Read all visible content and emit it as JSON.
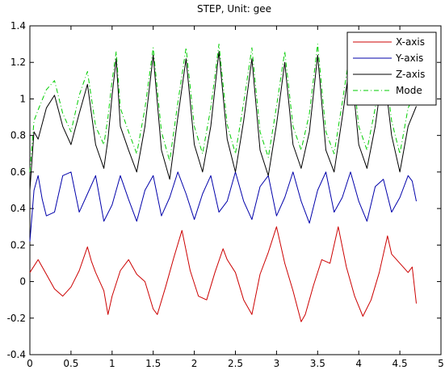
{
  "chart_data": {
    "type": "line",
    "title": "STEP, Unit: gee",
    "xlabel": "",
    "ylabel": "",
    "xlim": [
      0,
      5
    ],
    "ylim": [
      -0.4,
      1.4
    ],
    "xticks": [
      0,
      0.5,
      1,
      1.5,
      2,
      2.5,
      3,
      3.5,
      4,
      4.5,
      5
    ],
    "yticks": [
      -0.4,
      -0.2,
      0,
      0.2,
      0.4,
      0.6,
      0.8,
      1,
      1.2,
      1.4
    ],
    "xtick_labels": [
      "0",
      "0.5",
      "1",
      "1.5",
      "2",
      "2.5",
      "3",
      "3.5",
      "4",
      "4.5",
      "5"
    ],
    "ytick_labels": [
      "-0.4",
      "-0.2",
      "0",
      "0.2",
      "0.4",
      "0.6",
      "0.8",
      "1",
      "1.2",
      "1.4"
    ],
    "grid": false,
    "legend_position": "top-right",
    "series": [
      {
        "name": "X-axis",
        "color": "#cc0000",
        "dash": "solid",
        "points": [
          [
            0.0,
            0.05
          ],
          [
            0.1,
            0.12
          ],
          [
            0.2,
            0.04
          ],
          [
            0.3,
            -0.04
          ],
          [
            0.4,
            -0.08
          ],
          [
            0.5,
            -0.03
          ],
          [
            0.6,
            0.06
          ],
          [
            0.7,
            0.19
          ],
          [
            0.75,
            0.11
          ],
          [
            0.8,
            0.05
          ],
          [
            0.9,
            -0.05
          ],
          [
            0.95,
            -0.18
          ],
          [
            1.0,
            -0.08
          ],
          [
            1.1,
            0.06
          ],
          [
            1.2,
            0.12
          ],
          [
            1.3,
            0.04
          ],
          [
            1.4,
            0.0
          ],
          [
            1.5,
            -0.15
          ],
          [
            1.55,
            -0.18
          ],
          [
            1.65,
            -0.03
          ],
          [
            1.75,
            0.13
          ],
          [
            1.85,
            0.28
          ],
          [
            1.95,
            0.06
          ],
          [
            2.05,
            -0.08
          ],
          [
            2.15,
            -0.1
          ],
          [
            2.25,
            0.05
          ],
          [
            2.35,
            0.18
          ],
          [
            2.4,
            0.12
          ],
          [
            2.5,
            0.05
          ],
          [
            2.6,
            -0.1
          ],
          [
            2.7,
            -0.18
          ],
          [
            2.8,
            0.04
          ],
          [
            2.9,
            0.16
          ],
          [
            3.0,
            0.3
          ],
          [
            3.1,
            0.1
          ],
          [
            3.2,
            -0.05
          ],
          [
            3.3,
            -0.22
          ],
          [
            3.35,
            -0.18
          ],
          [
            3.45,
            -0.02
          ],
          [
            3.55,
            0.12
          ],
          [
            3.65,
            0.1
          ],
          [
            3.75,
            0.3
          ],
          [
            3.85,
            0.08
          ],
          [
            3.95,
            -0.08
          ],
          [
            4.05,
            -0.19
          ],
          [
            4.15,
            -0.1
          ],
          [
            4.25,
            0.05
          ],
          [
            4.35,
            0.25
          ],
          [
            4.4,
            0.15
          ],
          [
            4.5,
            0.1
          ],
          [
            4.6,
            0.05
          ],
          [
            4.65,
            0.08
          ],
          [
            4.7,
            -0.12
          ]
        ]
      },
      {
        "name": "Y-axis",
        "color": "#0000aa",
        "dash": "solid",
        "points": [
          [
            0.0,
            0.22
          ],
          [
            0.05,
            0.5
          ],
          [
            0.1,
            0.58
          ],
          [
            0.15,
            0.45
          ],
          [
            0.2,
            0.36
          ],
          [
            0.3,
            0.38
          ],
          [
            0.4,
            0.58
          ],
          [
            0.5,
            0.6
          ],
          [
            0.6,
            0.38
          ],
          [
            0.7,
            0.48
          ],
          [
            0.8,
            0.58
          ],
          [
            0.9,
            0.33
          ],
          [
            1.0,
            0.42
          ],
          [
            1.1,
            0.58
          ],
          [
            1.2,
            0.45
          ],
          [
            1.3,
            0.33
          ],
          [
            1.4,
            0.5
          ],
          [
            1.5,
            0.58
          ],
          [
            1.6,
            0.36
          ],
          [
            1.7,
            0.46
          ],
          [
            1.8,
            0.6
          ],
          [
            1.9,
            0.48
          ],
          [
            2.0,
            0.34
          ],
          [
            2.1,
            0.48
          ],
          [
            2.2,
            0.58
          ],
          [
            2.3,
            0.38
          ],
          [
            2.4,
            0.44
          ],
          [
            2.5,
            0.6
          ],
          [
            2.6,
            0.44
          ],
          [
            2.7,
            0.34
          ],
          [
            2.8,
            0.52
          ],
          [
            2.9,
            0.58
          ],
          [
            3.0,
            0.36
          ],
          [
            3.1,
            0.46
          ],
          [
            3.2,
            0.6
          ],
          [
            3.3,
            0.44
          ],
          [
            3.4,
            0.32
          ],
          [
            3.5,
            0.5
          ],
          [
            3.6,
            0.6
          ],
          [
            3.7,
            0.38
          ],
          [
            3.8,
            0.46
          ],
          [
            3.9,
            0.6
          ],
          [
            4.0,
            0.44
          ],
          [
            4.1,
            0.33
          ],
          [
            4.2,
            0.52
          ],
          [
            4.3,
            0.56
          ],
          [
            4.4,
            0.38
          ],
          [
            4.5,
            0.46
          ],
          [
            4.6,
            0.58
          ],
          [
            4.65,
            0.55
          ],
          [
            4.7,
            0.44
          ]
        ]
      },
      {
        "name": "Z-axis",
        "color": "#000000",
        "dash": "solid",
        "points": [
          [
            0.0,
            0.5
          ],
          [
            0.05,
            0.82
          ],
          [
            0.1,
            0.78
          ],
          [
            0.2,
            0.95
          ],
          [
            0.3,
            1.02
          ],
          [
            0.4,
            0.85
          ],
          [
            0.5,
            0.75
          ],
          [
            0.6,
            0.92
          ],
          [
            0.7,
            1.08
          ],
          [
            0.8,
            0.75
          ],
          [
            0.9,
            0.62
          ],
          [
            0.95,
            0.78
          ],
          [
            1.0,
            1.02
          ],
          [
            1.05,
            1.22
          ],
          [
            1.1,
            0.85
          ],
          [
            1.2,
            0.72
          ],
          [
            1.3,
            0.6
          ],
          [
            1.4,
            0.85
          ],
          [
            1.5,
            1.24
          ],
          [
            1.6,
            0.72
          ],
          [
            1.7,
            0.56
          ],
          [
            1.8,
            0.9
          ],
          [
            1.9,
            1.22
          ],
          [
            2.0,
            0.75
          ],
          [
            2.1,
            0.6
          ],
          [
            2.2,
            0.85
          ],
          [
            2.3,
            1.26
          ],
          [
            2.4,
            0.78
          ],
          [
            2.5,
            0.6
          ],
          [
            2.6,
            0.88
          ],
          [
            2.7,
            1.22
          ],
          [
            2.8,
            0.72
          ],
          [
            2.9,
            0.58
          ],
          [
            3.0,
            0.86
          ],
          [
            3.1,
            1.2
          ],
          [
            3.2,
            0.75
          ],
          [
            3.3,
            0.62
          ],
          [
            3.4,
            0.82
          ],
          [
            3.5,
            1.24
          ],
          [
            3.6,
            0.72
          ],
          [
            3.7,
            0.6
          ],
          [
            3.8,
            0.9
          ],
          [
            3.9,
            1.22
          ],
          [
            4.0,
            0.75
          ],
          [
            4.1,
            0.62
          ],
          [
            4.2,
            0.85
          ],
          [
            4.3,
            1.18
          ],
          [
            4.4,
            0.8
          ],
          [
            4.5,
            0.6
          ],
          [
            4.6,
            0.85
          ],
          [
            4.7,
            0.96
          ]
        ]
      },
      {
        "name": "Mode",
        "color": "#00cc00",
        "dash": "dashdot",
        "points": [
          [
            0.0,
            0.6
          ],
          [
            0.05,
            0.88
          ],
          [
            0.1,
            0.94
          ],
          [
            0.2,
            1.05
          ],
          [
            0.3,
            1.1
          ],
          [
            0.4,
            0.92
          ],
          [
            0.5,
            0.82
          ],
          [
            0.6,
            1.02
          ],
          [
            0.7,
            1.15
          ],
          [
            0.8,
            0.85
          ],
          [
            0.9,
            0.75
          ],
          [
            0.95,
            0.9
          ],
          [
            1.0,
            1.1
          ],
          [
            1.05,
            1.26
          ],
          [
            1.1,
            0.95
          ],
          [
            1.2,
            0.82
          ],
          [
            1.3,
            0.7
          ],
          [
            1.4,
            0.95
          ],
          [
            1.5,
            1.28
          ],
          [
            1.6,
            0.82
          ],
          [
            1.7,
            0.66
          ],
          [
            1.8,
            0.98
          ],
          [
            1.9,
            1.28
          ],
          [
            2.0,
            0.85
          ],
          [
            2.1,
            0.7
          ],
          [
            2.2,
            0.95
          ],
          [
            2.3,
            1.3
          ],
          [
            2.4,
            0.86
          ],
          [
            2.5,
            0.7
          ],
          [
            2.6,
            0.98
          ],
          [
            2.7,
            1.28
          ],
          [
            2.8,
            0.82
          ],
          [
            2.9,
            0.68
          ],
          [
            3.0,
            0.96
          ],
          [
            3.1,
            1.26
          ],
          [
            3.2,
            0.85
          ],
          [
            3.3,
            0.72
          ],
          [
            3.4,
            0.92
          ],
          [
            3.5,
            1.3
          ],
          [
            3.6,
            0.82
          ],
          [
            3.7,
            0.7
          ],
          [
            3.8,
            0.98
          ],
          [
            3.9,
            1.28
          ],
          [
            4.0,
            0.85
          ],
          [
            4.1,
            0.72
          ],
          [
            4.2,
            0.95
          ],
          [
            4.3,
            1.25
          ],
          [
            4.4,
            0.88
          ],
          [
            4.5,
            0.7
          ],
          [
            4.6,
            0.95
          ],
          [
            4.7,
            1.04
          ]
        ]
      }
    ]
  }
}
